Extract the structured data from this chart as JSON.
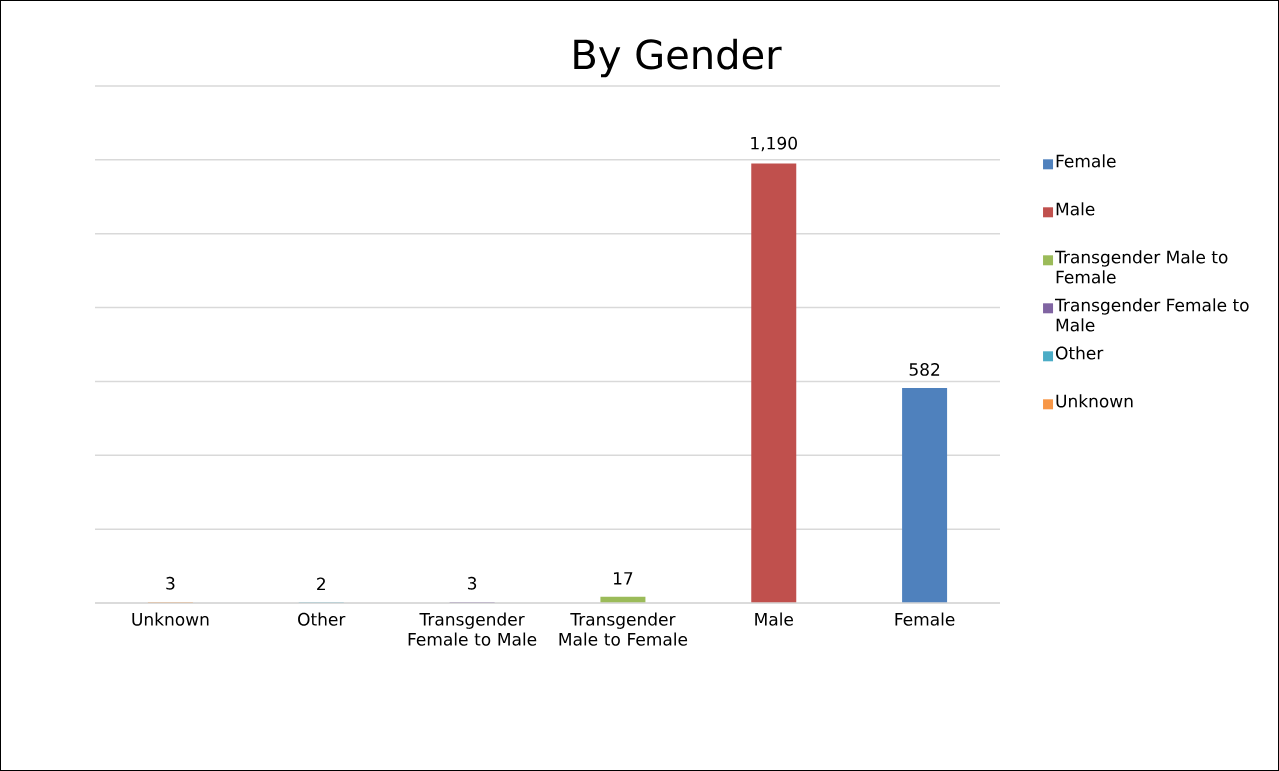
{
  "chart_data": {
    "type": "bar",
    "title": "By Gender",
    "categories": [
      "Unknown",
      "Other",
      "Transgender Female to Male",
      "Transgender Male to Female",
      "Male",
      "Female"
    ],
    "series": [
      {
        "name": "Unknown",
        "color": "#f79646",
        "values": [
          3,
          null,
          null,
          null,
          null,
          null
        ],
        "value_labels": [
          "3",
          null,
          null,
          null,
          null,
          null
        ]
      },
      {
        "name": "Other",
        "color": "#4bacc6",
        "values": [
          null,
          2,
          null,
          null,
          null,
          null
        ],
        "value_labels": [
          null,
          "2",
          null,
          null,
          null,
          null
        ]
      },
      {
        "name": "Transgender Female to Male",
        "color": "#8064a2",
        "values": [
          null,
          null,
          3,
          null,
          null,
          null
        ],
        "value_labels": [
          null,
          null,
          "3",
          null,
          null,
          null
        ]
      },
      {
        "name": "Transgender Male to Female",
        "color": "#9bbb59",
        "values": [
          null,
          null,
          null,
          17,
          null,
          null
        ],
        "value_labels": [
          null,
          null,
          null,
          "17",
          null,
          null
        ]
      },
      {
        "name": "Male",
        "color": "#c0504d",
        "values": [
          null,
          null,
          null,
          null,
          1190,
          null
        ],
        "value_labels": [
          null,
          null,
          null,
          null,
          "1,190",
          null
        ]
      },
      {
        "name": "Female",
        "color": "#4f81bd",
        "values": [
          null,
          null,
          null,
          null,
          null,
          582
        ],
        "value_labels": [
          null,
          null,
          null,
          null,
          null,
          "582"
        ]
      }
    ],
    "ylim": [
      0,
      1400
    ],
    "yticks": [
      {
        "value": 0,
        "label": null
      },
      {
        "value": 200,
        "label": null
      },
      {
        "value": 400,
        "label": null
      },
      {
        "value": 600,
        "label": null
      },
      {
        "value": 800,
        "label": null
      },
      {
        "value": 1000,
        "label": null
      },
      {
        "value": 1200,
        "label": null
      },
      {
        "value": 1400,
        "label": null
      }
    ],
    "tick_labels": "x",
    "grid": "y",
    "legend": "right"
  }
}
